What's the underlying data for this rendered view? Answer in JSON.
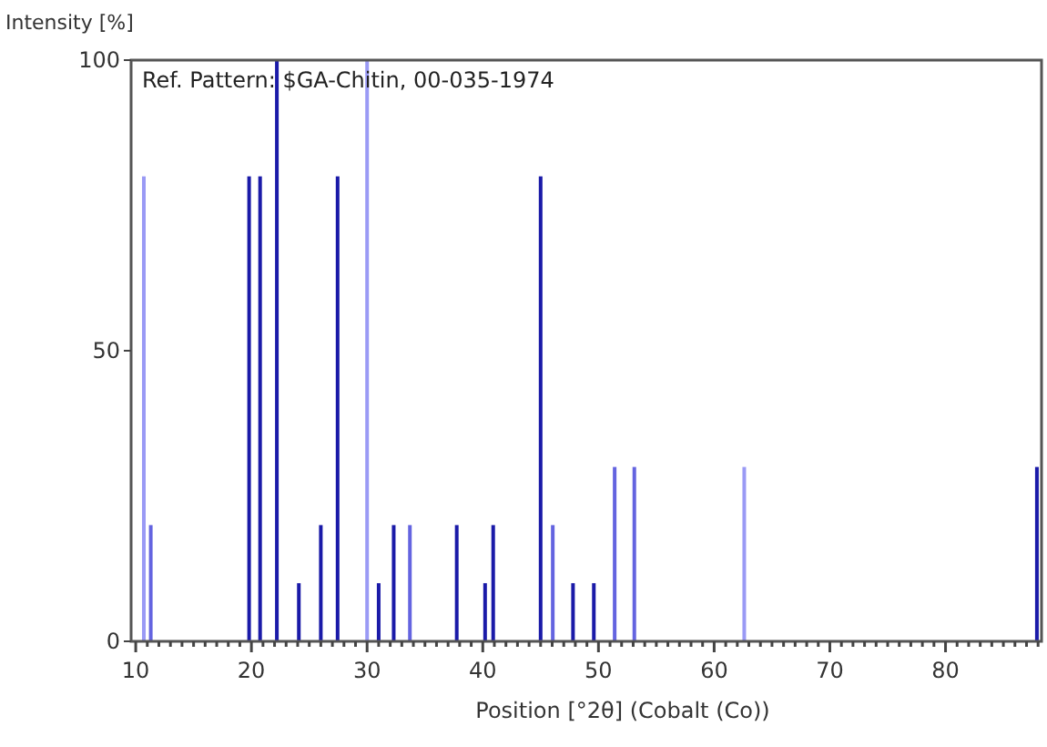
{
  "chart_data": {
    "type": "bar",
    "xlabel": "Position [°2θ] (Cobalt (Co))",
    "ylabel": "Intensity [%]",
    "annotations": [
      "Ref. Pattern: $GA-Chitin, 00-035-1974"
    ],
    "x": [
      10.7,
      11.3,
      19.8,
      20.75,
      22.2,
      24.1,
      26.0,
      27.45,
      30.0,
      31.0,
      32.3,
      33.7,
      37.75,
      40.2,
      40.9,
      45.0,
      46.05,
      47.8,
      49.6,
      51.4,
      53.1,
      62.6,
      87.9
    ],
    "values": [
      80,
      20,
      80,
      80,
      100,
      10,
      20,
      80,
      100,
      10,
      20,
      20,
      20,
      10,
      20,
      80,
      20,
      10,
      10,
      30,
      30,
      30,
      30
    ],
    "colors": [
      "#9a9af5",
      "#6464e0",
      "#1a1aa8",
      "#1a1aa8",
      "#1a1aa8",
      "#1a1aa8",
      "#1a1aa8",
      "#1a1aa8",
      "#9a9af5",
      "#1a1aa8",
      "#1a1aa8",
      "#6464e0",
      "#1a1aa8",
      "#1a1aa8",
      "#1a1aa8",
      "#1a1aa8",
      "#6464e0",
      "#1a1aa8",
      "#1a1aa8",
      "#6464e0",
      "#6464e0",
      "#9a9af5",
      "#1a1aa8"
    ],
    "xlim": [
      9.6,
      88.3
    ],
    "xticks": [
      10,
      {
        "value": 11,
        "label": null
      },
      {
        "value": 12,
        "label": null
      },
      {
        "value": 13,
        "label": null
      },
      {
        "value": 14,
        "label": null
      },
      {
        "value": 15,
        "label": null
      },
      {
        "value": 16,
        "label": null
      },
      {
        "value": 17,
        "label": null
      },
      {
        "value": 18,
        "label": null
      },
      {
        "value": 19,
        "label": null
      },
      20,
      {
        "value": 21,
        "label": null
      },
      {
        "value": 22,
        "label": null
      },
      {
        "value": 23,
        "label": null
      },
      {
        "value": 24,
        "label": null
      },
      {
        "value": 25,
        "label": null
      },
      {
        "value": 26,
        "label": null
      },
      {
        "value": 27,
        "label": null
      },
      {
        "value": 28,
        "label": null
      },
      {
        "value": 29,
        "label": null
      },
      30,
      {
        "value": 31,
        "label": null
      },
      {
        "value": 32,
        "label": null
      },
      {
        "value": 33,
        "label": null
      },
      {
        "value": 34,
        "label": null
      },
      {
        "value": 35,
        "label": null
      },
      {
        "value": 36,
        "label": null
      },
      {
        "value": 37,
        "label": null
      },
      {
        "value": 38,
        "label": null
      },
      {
        "value": 39,
        "label": null
      },
      40,
      {
        "value": 41,
        "label": null
      },
      {
        "value": 42,
        "label": null
      },
      {
        "value": 43,
        "label": null
      },
      {
        "value": 44,
        "label": null
      },
      {
        "value": 45,
        "label": null
      },
      {
        "value": 46,
        "label": null
      },
      {
        "value": 47,
        "label": null
      },
      {
        "value": 48,
        "label": null
      },
      {
        "value": 49,
        "label": null
      },
      50,
      {
        "value": 51,
        "label": null
      },
      {
        "value": 52,
        "label": null
      },
      {
        "value": 53,
        "label": null
      },
      {
        "value": 54,
        "label": null
      },
      {
        "value": 55,
        "label": null
      },
      {
        "value": 56,
        "label": null
      },
      {
        "value": 57,
        "label": null
      },
      {
        "value": 58,
        "label": null
      },
      {
        "value": 59,
        "label": null
      },
      60,
      {
        "value": 61,
        "label": null
      },
      {
        "value": 62,
        "label": null
      },
      {
        "value": 63,
        "label": null
      },
      {
        "value": 64,
        "label": null
      },
      {
        "value": 65,
        "label": null
      },
      {
        "value": 66,
        "label": null
      },
      {
        "value": 67,
        "label": null
      },
      {
        "value": 68,
        "label": null
      },
      {
        "value": 69,
        "label": null
      },
      70,
      {
        "value": 71,
        "label": null
      },
      {
        "value": 72,
        "label": null
      },
      {
        "value": 73,
        "label": null
      },
      {
        "value": 74,
        "label": null
      },
      {
        "value": 75,
        "label": null
      },
      {
        "value": 76,
        "label": null
      },
      {
        "value": 77,
        "label": null
      },
      {
        "value": 78,
        "label": null
      },
      {
        "value": 79,
        "label": null
      },
      80,
      {
        "value": 81,
        "label": null
      },
      {
        "value": 82,
        "label": null
      },
      {
        "value": 83,
        "label": null
      },
      {
        "value": 84,
        "label": null
      },
      {
        "value": 85,
        "label": null
      },
      {
        "value": 86,
        "label": null
      },
      {
        "value": 87,
        "label": null
      },
      {
        "value": 88,
        "label": null
      }
    ],
    "ylim": [
      0,
      100
    ],
    "yticks": [
      0,
      50,
      100
    ],
    "grid": false
  }
}
